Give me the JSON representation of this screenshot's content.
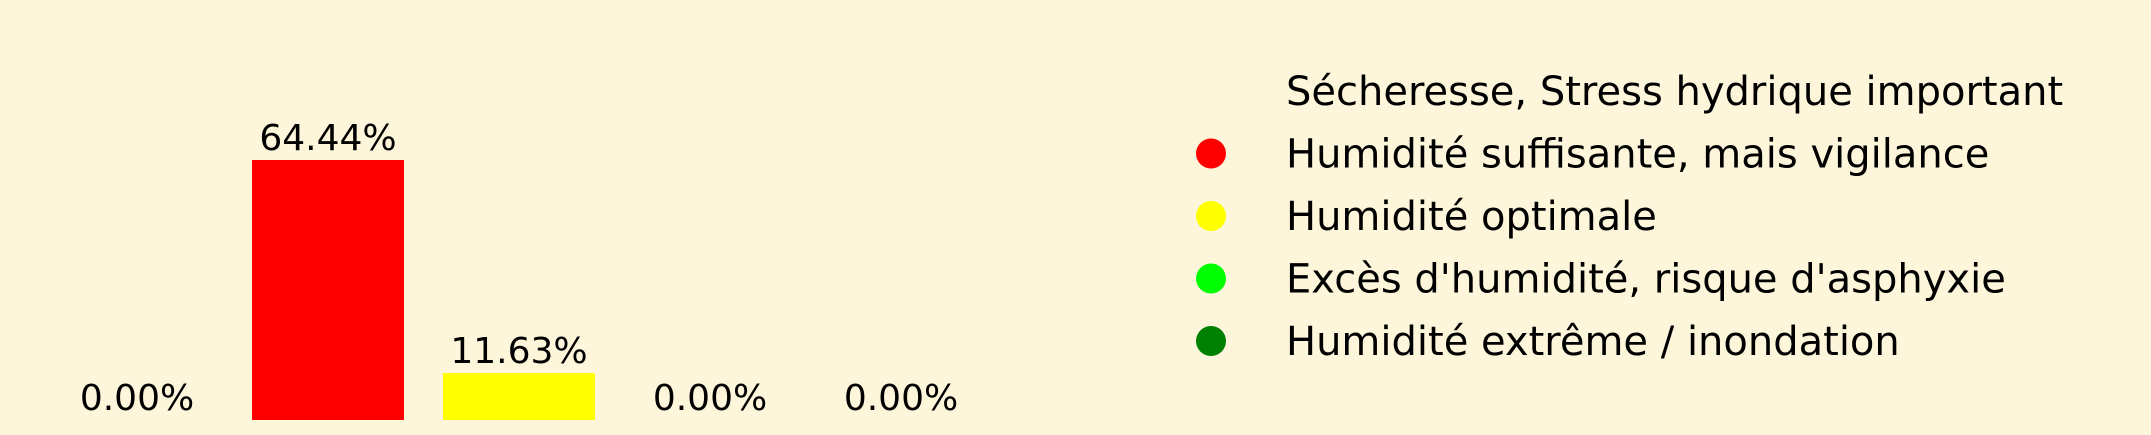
{
  "chart_data": {
    "type": "bar",
    "categories": [
      "Sécheresse, Stress hydrique important",
      "Humidité suffisante, mais vigilance",
      "Humidité optimale",
      "Excès d'humidité, risque d'asphyxie",
      "Humidité extrême / inondation"
    ],
    "values": [
      0.0,
      64.44,
      11.63,
      0.0,
      0.0
    ],
    "value_labels": [
      "0.00%",
      "64.44%",
      "11.63%",
      "0.00%",
      "0.00%"
    ],
    "colors": [
      "#fdf6db",
      "#ff0000",
      "#ffff00",
      "#00ff00",
      "#008000"
    ],
    "ylim": [
      0,
      70
    ],
    "legend_position": "right",
    "grid": false,
    "axes_visible": false
  },
  "background_color": "#fdf6db"
}
